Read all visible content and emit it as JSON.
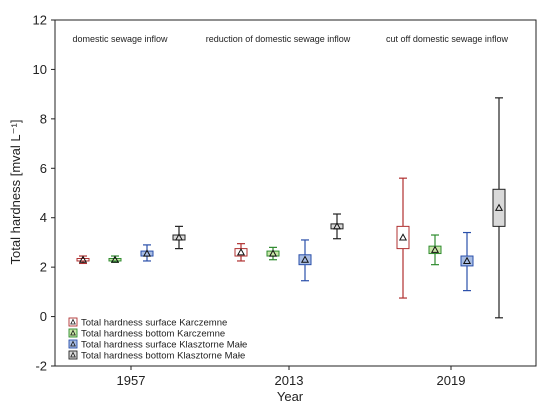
{
  "chart_data": {
    "type": "box",
    "xlabel": "Year",
    "ylabel": "Total hardness [mval L⁻¹]",
    "ylim": [
      -2,
      12
    ],
    "yticks": [
      -2,
      0,
      2,
      4,
      6,
      8,
      10,
      12
    ],
    "categories": [
      "1957",
      "2013",
      "2019"
    ],
    "annotations": [
      "domestic sewage inflow",
      "reduction of domestic sewage inflow",
      "cut off domestic sewage inflow"
    ],
    "legend_position": "bottom-left",
    "series": [
      {
        "name": "Total hardness surface Karczemne",
        "color": "#b03030",
        "fill": "#ffffff",
        "data": [
          {
            "category": "1957",
            "mean": 2.3,
            "box": [
              2.25,
              2.35
            ],
            "whisker": [
              2.15,
              2.45
            ]
          },
          {
            "category": "2013",
            "mean": 2.6,
            "box": [
              2.45,
              2.75
            ],
            "whisker": [
              2.25,
              2.95
            ]
          },
          {
            "category": "2019",
            "mean": 3.2,
            "box": [
              2.75,
              3.65
            ],
            "whisker": [
              0.75,
              5.6
            ]
          }
        ]
      },
      {
        "name": "Total hardness bottom Karczemne",
        "color": "#2e8b2e",
        "fill": "#c8e6a8",
        "data": [
          {
            "category": "1957",
            "mean": 2.3,
            "box": [
              2.25,
              2.35
            ],
            "whisker": [
              2.2,
              2.45
            ]
          },
          {
            "category": "2013",
            "mean": 2.55,
            "box": [
              2.45,
              2.65
            ],
            "whisker": [
              2.3,
              2.8
            ]
          },
          {
            "category": "2019",
            "mean": 2.7,
            "box": [
              2.55,
              2.85
            ],
            "whisker": [
              2.1,
              3.3
            ]
          }
        ]
      },
      {
        "name": "Total hardness surface Klasztorne Małe",
        "color": "#2a4faa",
        "fill": "#a8bde4",
        "data": [
          {
            "category": "1957",
            "mean": 2.55,
            "box": [
              2.45,
              2.65
            ],
            "whisker": [
              2.25,
              2.9
            ]
          },
          {
            "category": "2013",
            "mean": 2.3,
            "box": [
              2.1,
              2.5
            ],
            "whisker": [
              1.45,
              3.1
            ]
          },
          {
            "category": "2019",
            "mean": 2.25,
            "box": [
              2.05,
              2.45
            ],
            "whisker": [
              1.05,
              3.4
            ]
          }
        ]
      },
      {
        "name": "Total hardness bottom Klasztorne Małe",
        "color": "#222222",
        "fill": "#d9d9d9",
        "data": [
          {
            "category": "1957",
            "mean": 3.2,
            "box": [
              3.1,
              3.3
            ],
            "whisker": [
              2.75,
              3.65
            ]
          },
          {
            "category": "2013",
            "mean": 3.65,
            "box": [
              3.55,
              3.75
            ],
            "whisker": [
              3.15,
              4.15
            ]
          },
          {
            "category": "2019",
            "mean": 4.4,
            "box": [
              3.65,
              5.15
            ],
            "whisker": [
              -0.05,
              8.85
            ]
          }
        ]
      }
    ]
  }
}
